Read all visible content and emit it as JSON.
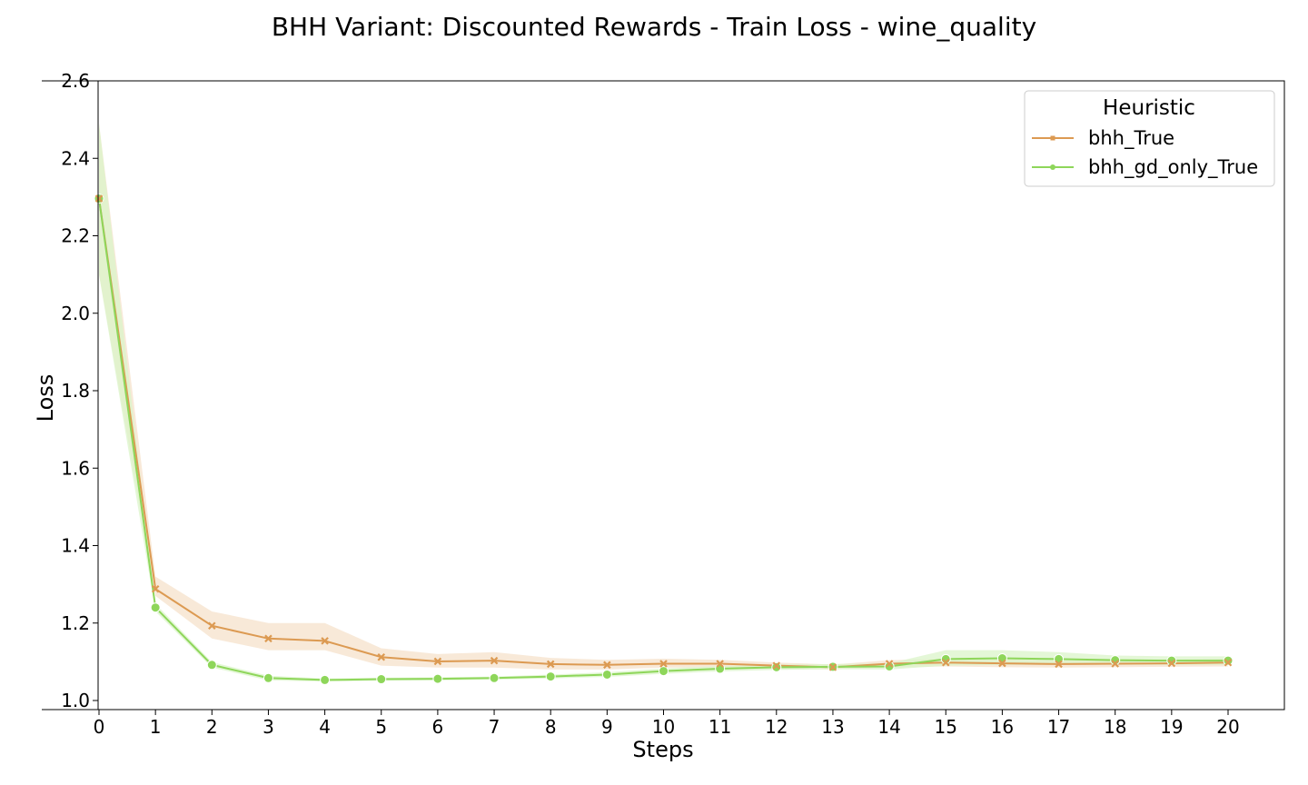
{
  "chart_data": {
    "type": "line",
    "title": "BHH Variant: Discounted Rewards - Train Loss - wine_quality",
    "xlabel": "Steps",
    "ylabel": "Loss",
    "xlim": [
      0,
      20
    ],
    "ylim": [
      1.0,
      2.6
    ],
    "x": [
      0,
      1,
      2,
      3,
      4,
      5,
      6,
      7,
      8,
      9,
      10,
      11,
      12,
      13,
      14,
      15,
      16,
      17,
      18,
      19,
      20
    ],
    "x_ticks": [
      "0",
      "1",
      "2",
      "3",
      "4",
      "5",
      "6",
      "7",
      "8",
      "9",
      "10",
      "11",
      "12",
      "13",
      "14",
      "15",
      "16",
      "17",
      "18",
      "19",
      "20"
    ],
    "y_ticks": [
      "1.0",
      "1.2",
      "1.4",
      "1.6",
      "1.8",
      "2.0",
      "2.2",
      "2.4",
      "2.6"
    ],
    "grid": false,
    "legend": {
      "title": "Heuristic",
      "placement": "top-right"
    },
    "series": [
      {
        "name": "bhh_True",
        "color": "#dc9a52",
        "band_color": "#f5e1cb",
        "marker": "x",
        "values": [
          2.296,
          1.288,
          1.193,
          1.16,
          1.154,
          1.112,
          1.101,
          1.103,
          1.094,
          1.092,
          1.095,
          1.095,
          1.09,
          1.086,
          1.095,
          1.098,
          1.096,
          1.094,
          1.095,
          1.096,
          1.098
        ],
        "lower": [
          2.1,
          1.27,
          1.16,
          1.13,
          1.13,
          1.09,
          1.085,
          1.085,
          1.08,
          1.08,
          1.085,
          1.085,
          1.082,
          1.08,
          1.085,
          1.088,
          1.086,
          1.085,
          1.086,
          1.087,
          1.088
        ],
        "upper": [
          2.49,
          1.32,
          1.23,
          1.2,
          1.2,
          1.135,
          1.12,
          1.125,
          1.11,
          1.105,
          1.108,
          1.105,
          1.098,
          1.093,
          1.104,
          1.108,
          1.106,
          1.103,
          1.104,
          1.105,
          1.108
        ]
      },
      {
        "name": "bhh_gd_only_True",
        "color": "#8ed65a",
        "band_color": "#dbf4c9",
        "marker": "o",
        "values": [
          2.296,
          1.24,
          1.092,
          1.058,
          1.053,
          1.055,
          1.056,
          1.058,
          1.062,
          1.067,
          1.076,
          1.082,
          1.086,
          1.087,
          1.088,
          1.107,
          1.109,
          1.107,
          1.104,
          1.103,
          1.103
        ],
        "lower": [
          2.1,
          1.23,
          1.085,
          1.052,
          1.049,
          1.051,
          1.052,
          1.054,
          1.057,
          1.061,
          1.069,
          1.075,
          1.079,
          1.081,
          1.08,
          1.09,
          1.092,
          1.092,
          1.092,
          1.092,
          1.092
        ],
        "upper": [
          2.49,
          1.25,
          1.099,
          1.064,
          1.057,
          1.059,
          1.06,
          1.062,
          1.067,
          1.073,
          1.083,
          1.089,
          1.093,
          1.094,
          1.096,
          1.13,
          1.13,
          1.125,
          1.116,
          1.114,
          1.114
        ]
      }
    ]
  }
}
